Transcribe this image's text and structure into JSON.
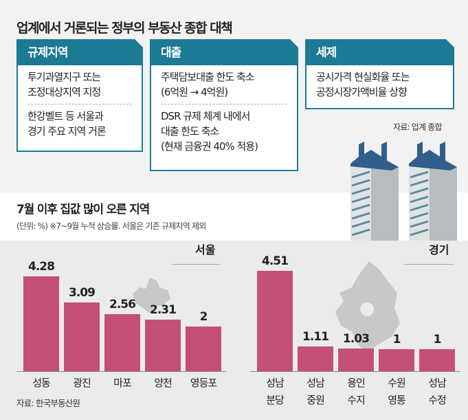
{
  "title": "업계에서 거론되는 정부의 부동산 종합 대책",
  "policies": [
    {
      "header": "규제지역",
      "items": [
        "투기과열지구 또는\n조정대상지역 지정",
        "한강벨트 등 서울과\n경기 주요 지역 거론"
      ]
    },
    {
      "header": "대출",
      "items": [
        "주택담보대출 한도 축소\n(6억원 → 4억원)",
        "DSR 규제 체계 내에서\n대출 한도 축소\n(현재 금융권 40% 적용)"
      ]
    },
    {
      "header": "세제",
      "items": [
        "공시가격 현실화율 또는\n공정시장가액비율 상향"
      ]
    }
  ],
  "policy_source": "자료: 업계 종합",
  "chart_title": "7월 이후 집값 많이 오른 지역",
  "chart_subtitle": "(단위: %)  ※7~9월 누적 상승률. 서울은 기존 규제지역 제외",
  "chart_source": "자료: 한국부동산원",
  "colors": {
    "accent": "#1c7a95",
    "bar": "#c44f76"
  },
  "chart_data": [
    {
      "type": "bar",
      "title": "서울",
      "unit": "%",
      "categories": [
        "성동",
        "광진",
        "마포",
        "양천",
        "영등포"
      ],
      "values": [
        4.28,
        3.09,
        2.56,
        2.31,
        2
      ],
      "labels": [
        "4.28",
        "3.09",
        "2.56",
        "2.31",
        "2"
      ]
    },
    {
      "type": "bar",
      "title": "경기",
      "unit": "%",
      "categories": [
        "성남\n분당",
        "성남\n중원",
        "용인\n수지",
        "수원\n영통",
        "성남\n수정"
      ],
      "values": [
        4.51,
        1.11,
        1.03,
        1,
        1
      ],
      "labels": [
        "4.51",
        "1.11",
        "1.03",
        "1",
        "1"
      ]
    }
  ]
}
